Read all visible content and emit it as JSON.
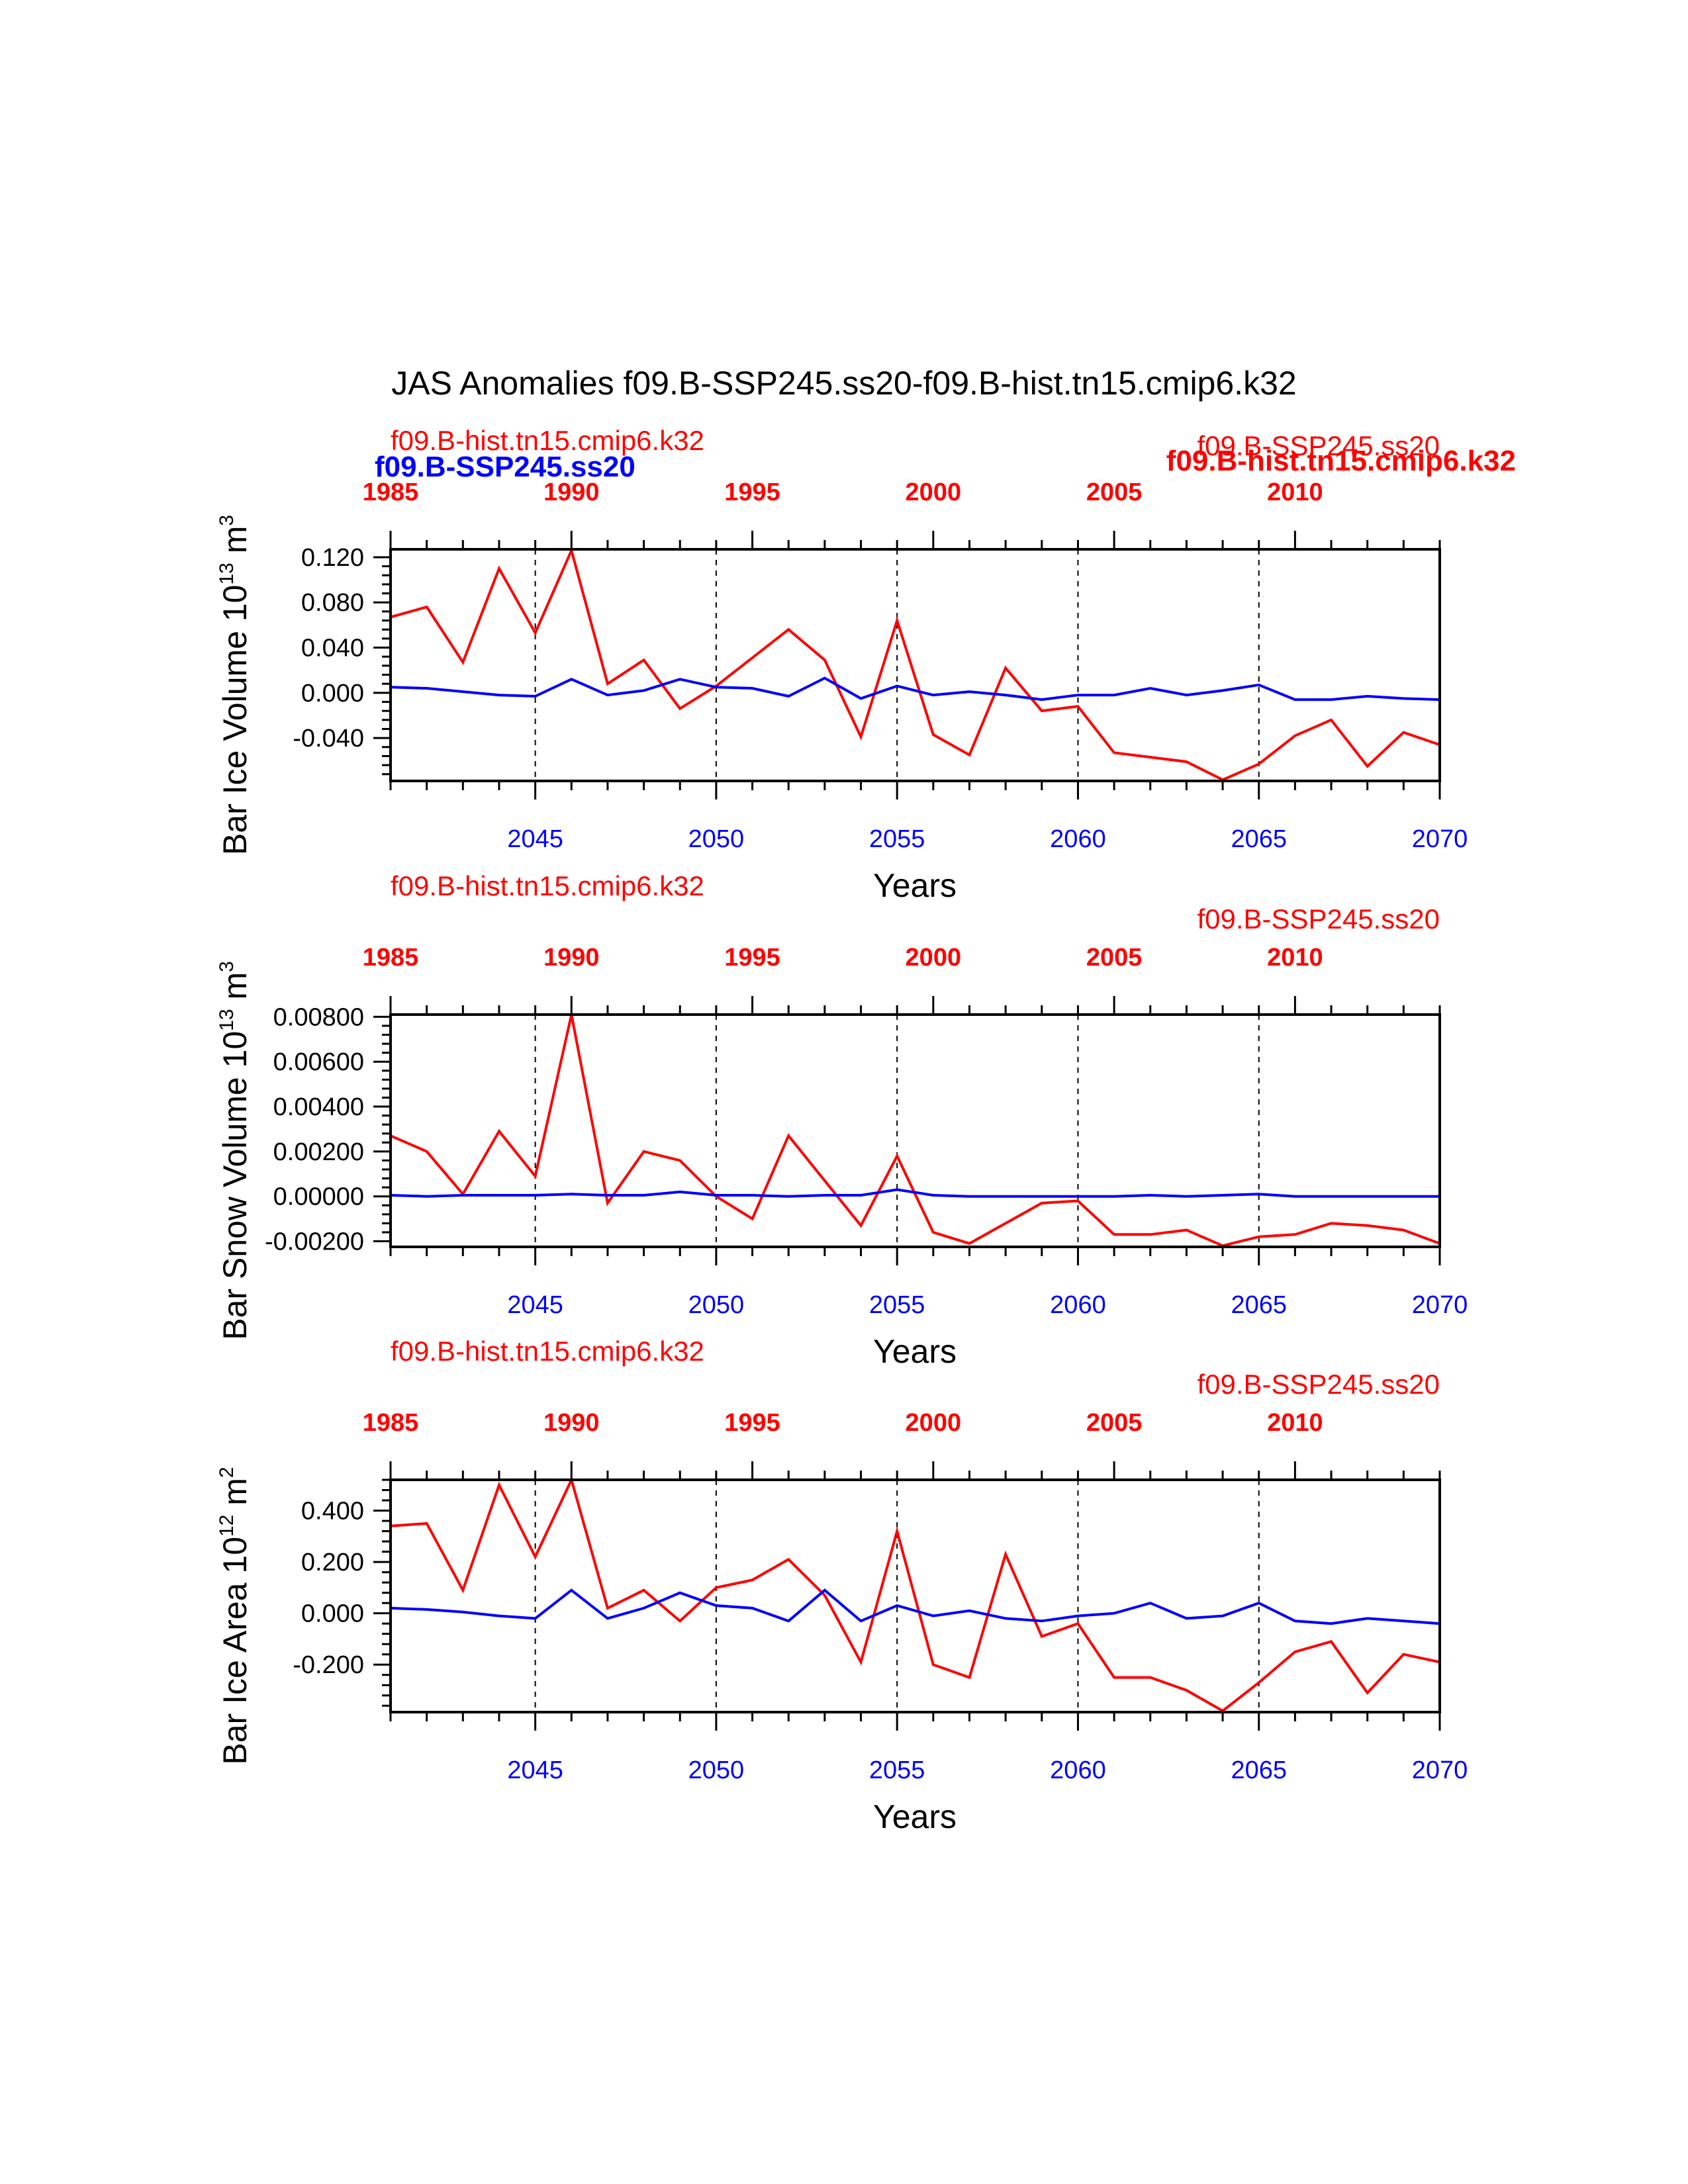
{
  "title": "JAS Anomalies f09.B-SSP245.ss20-f09.B-hist.tn15.cmip6.k32",
  "colors": {
    "hist": "#ff0000",
    "ssp": "#0000ff",
    "axis": "#000000"
  },
  "overlay_labels": {
    "ssp_bold": "f09.B-SSP245.ss20",
    "hist_bold": "f09.B-hist.tn15.cmip6.k32"
  },
  "chart_data": [
    {
      "type": "line",
      "series_labels": [
        "f09.B-hist.tn15.cmip6.k32",
        "f09.B-SSP245.ss20"
      ],
      "ylabel": {
        "main": "Bar Ice Volume 10",
        "exp": "13",
        "unit": " m",
        "unit_exp": "3"
      },
      "xlabel": "Years",
      "x_bottom": {
        "range": [
          2041,
          2070
        ],
        "ticks": [
          2045,
          2050,
          2055,
          2060,
          2065,
          2070
        ],
        "tick_labels": [
          "2045",
          "2050",
          "2055",
          "2060",
          "2065",
          "2070"
        ]
      },
      "x_top": {
        "range": [
          1985,
          2014
        ],
        "ticks": [
          1985,
          1990,
          1995,
          2000,
          2005,
          2010
        ],
        "tick_labels": [
          "1985",
          "1990",
          "1995",
          "2000",
          "2005",
          "2010"
        ]
      },
      "ylim": [
        -0.078,
        0.127
      ],
      "yticks": [
        0.12,
        0.08,
        0.04,
        0.0,
        -0.04
      ],
      "ytick_labels": [
        "0.120",
        "0.080",
        "0.040",
        "0.000",
        "-0.040"
      ],
      "dashed_grid_x": [
        2045,
        2050,
        2055,
        2060,
        2065
      ],
      "series": [
        {
          "name": "f09.B-hist.tn15.cmip6.k32",
          "color": "#ff0000",
          "x": [
            1985,
            1986,
            1987,
            1988,
            1989,
            1990,
            1991,
            1992,
            1993,
            1994,
            1995,
            1996,
            1997,
            1998,
            1999,
            2000,
            2001,
            2002,
            2003,
            2004,
            2005,
            2006,
            2007,
            2008,
            2009,
            2010,
            2011,
            2012,
            2013,
            2014
          ],
          "y": [
            0.067,
            0.076,
            0.027,
            0.11,
            0.053,
            0.126,
            0.008,
            0.029,
            -0.014,
            0.006,
            0.031,
            0.056,
            0.029,
            -0.039,
            0.064,
            -0.037,
            -0.055,
            0.022,
            -0.016,
            -0.012,
            -0.053,
            -0.057,
            -0.061,
            -0.077,
            -0.063,
            -0.038,
            -0.024,
            -0.065,
            -0.035,
            -0.046
          ]
        },
        {
          "name": "f09.B-SSP245.ss20",
          "color": "#0000ff",
          "x": [
            2041,
            2042,
            2043,
            2044,
            2045,
            2046,
            2047,
            2048,
            2049,
            2050,
            2051,
            2052,
            2053,
            2054,
            2055,
            2056,
            2057,
            2058,
            2059,
            2060,
            2061,
            2062,
            2063,
            2064,
            2065,
            2066,
            2067,
            2068,
            2069,
            2070
          ],
          "y": [
            0.005,
            0.004,
            0.001,
            -0.002,
            -0.003,
            0.012,
            -0.002,
            0.002,
            0.012,
            0.005,
            0.004,
            -0.003,
            0.013,
            -0.005,
            0.006,
            -0.002,
            0.001,
            -0.002,
            -0.006,
            -0.002,
            -0.002,
            0.004,
            -0.002,
            0.002,
            0.007,
            -0.006,
            -0.006,
            -0.003,
            -0.005,
            -0.006
          ]
        }
      ]
    },
    {
      "type": "line",
      "series_labels": [
        "f09.B-hist.tn15.cmip6.k32",
        "f09.B-SSP245.ss20"
      ],
      "ylabel": {
        "main": "Bar Snow Volume 10",
        "exp": "13",
        "unit": " m",
        "unit_exp": "3"
      },
      "xlabel": "Years",
      "x_bottom": {
        "range": [
          2041,
          2070
        ],
        "ticks": [
          2045,
          2050,
          2055,
          2060,
          2065,
          2070
        ],
        "tick_labels": [
          "2045",
          "2050",
          "2055",
          "2060",
          "2065",
          "2070"
        ]
      },
      "x_top": {
        "range": [
          1985,
          2014
        ],
        "ticks": [
          1985,
          1990,
          1995,
          2000,
          2005,
          2010
        ],
        "tick_labels": [
          "1985",
          "1990",
          "1995",
          "2000",
          "2005",
          "2010"
        ]
      },
      "ylim": [
        -0.00225,
        0.0081
      ],
      "yticks": [
        0.008,
        0.006,
        0.004,
        0.002,
        0.0,
        -0.002
      ],
      "ytick_labels": [
        "0.00800",
        "0.00600",
        "0.00400",
        "0.00200",
        "0.00000",
        "-0.00200"
      ],
      "dashed_grid_x": [
        2045,
        2050,
        2055,
        2060,
        2065
      ],
      "series": [
        {
          "name": "f09.B-hist.tn15.cmip6.k32",
          "color": "#ff0000",
          "x": [
            1985,
            1986,
            1987,
            1988,
            1989,
            1990,
            1991,
            1992,
            1993,
            1994,
            1995,
            1996,
            1997,
            1998,
            1999,
            2000,
            2001,
            2002,
            2003,
            2004,
            2005,
            2006,
            2007,
            2008,
            2009,
            2010,
            2011,
            2012,
            2013,
            2014
          ],
          "y": [
            0.0027,
            0.002,
            0.0001,
            0.0029,
            0.0009,
            0.0081,
            -0.0003,
            0.002,
            0.0016,
            0.0,
            -0.001,
            0.0027,
            0.0007,
            -0.0013,
            0.0018,
            -0.0016,
            -0.0021,
            -0.0012,
            -0.0003,
            -0.0002,
            -0.0017,
            -0.0017,
            -0.0015,
            -0.0022,
            -0.0018,
            -0.0017,
            -0.0012,
            -0.0013,
            -0.0015,
            -0.0021
          ]
        },
        {
          "name": "f09.B-SSP245.ss20",
          "color": "#0000ff",
          "x": [
            2041,
            2042,
            2043,
            2044,
            2045,
            2046,
            2047,
            2048,
            2049,
            2050,
            2051,
            2052,
            2053,
            2054,
            2055,
            2056,
            2057,
            2058,
            2059,
            2060,
            2061,
            2062,
            2063,
            2064,
            2065,
            2066,
            2067,
            2068,
            2069,
            2070
          ],
          "y": [
            5e-05,
            0.0,
            5e-05,
            5e-05,
            5e-05,
            0.0001,
            5e-05,
            5e-05,
            0.0002,
            5e-05,
            5e-05,
            0.0,
            5e-05,
            5e-05,
            0.0003,
            5e-05,
            0.0,
            0.0,
            0.0,
            0.0,
            0.0,
            5e-05,
            0.0,
            5e-05,
            0.0001,
            0.0,
            0.0,
            0.0,
            0.0,
            0.0
          ]
        }
      ]
    },
    {
      "type": "line",
      "series_labels": [
        "f09.B-hist.tn15.cmip6.k32",
        "f09.B-SSP245.ss20"
      ],
      "ylabel": {
        "main": "Bar Ice Area 10",
        "exp": "12",
        "unit": " m",
        "unit_exp": "2"
      },
      "xlabel": "Years",
      "x_bottom": {
        "range": [
          2041,
          2070
        ],
        "ticks": [
          2045,
          2050,
          2055,
          2060,
          2065,
          2070
        ],
        "tick_labels": [
          "2045",
          "2050",
          "2055",
          "2060",
          "2065",
          "2070"
        ]
      },
      "x_top": {
        "range": [
          1985,
          2014
        ],
        "ticks": [
          1985,
          1990,
          1995,
          2000,
          2005,
          2010
        ],
        "tick_labels": [
          "1985",
          "1990",
          "1995",
          "2000",
          "2005",
          "2010"
        ]
      },
      "ylim": [
        -0.385,
        0.52
      ],
      "yticks": [
        0.4,
        0.2,
        0.0,
        -0.2
      ],
      "ytick_labels": [
        "0.400",
        "0.200",
        "0.000",
        "-0.200"
      ],
      "dashed_grid_x": [
        2045,
        2050,
        2055,
        2060,
        2065
      ],
      "series": [
        {
          "name": "f09.B-hist.tn15.cmip6.k32",
          "color": "#ff0000",
          "x": [
            1985,
            1986,
            1987,
            1988,
            1989,
            1990,
            1991,
            1992,
            1993,
            1994,
            1995,
            1996,
            1997,
            1998,
            1999,
            2000,
            2001,
            2002,
            2003,
            2004,
            2005,
            2006,
            2007,
            2008,
            2009,
            2010,
            2011,
            2012,
            2013,
            2014
          ],
          "y": [
            0.34,
            0.35,
            0.09,
            0.5,
            0.22,
            0.52,
            0.02,
            0.09,
            -0.03,
            0.1,
            0.13,
            0.21,
            0.07,
            -0.19,
            0.32,
            -0.2,
            -0.25,
            0.23,
            -0.09,
            -0.04,
            -0.25,
            -0.25,
            -0.3,
            -0.38,
            -0.27,
            -0.15,
            -0.11,
            -0.31,
            -0.16,
            -0.19
          ]
        },
        {
          "name": "f09.B-SSP245.ss20",
          "color": "#0000ff",
          "x": [
            2041,
            2042,
            2043,
            2044,
            2045,
            2046,
            2047,
            2048,
            2049,
            2050,
            2051,
            2052,
            2053,
            2054,
            2055,
            2056,
            2057,
            2058,
            2059,
            2060,
            2061,
            2062,
            2063,
            2064,
            2065,
            2066,
            2067,
            2068,
            2069,
            2070
          ],
          "y": [
            0.02,
            0.015,
            0.005,
            -0.01,
            -0.02,
            0.09,
            -0.02,
            0.02,
            0.08,
            0.03,
            0.02,
            -0.03,
            0.09,
            -0.03,
            0.03,
            -0.01,
            0.01,
            -0.02,
            -0.03,
            -0.01,
            0.0,
            0.04,
            -0.02,
            -0.01,
            0.04,
            -0.03,
            -0.04,
            -0.02,
            -0.03,
            -0.04
          ]
        }
      ]
    }
  ]
}
